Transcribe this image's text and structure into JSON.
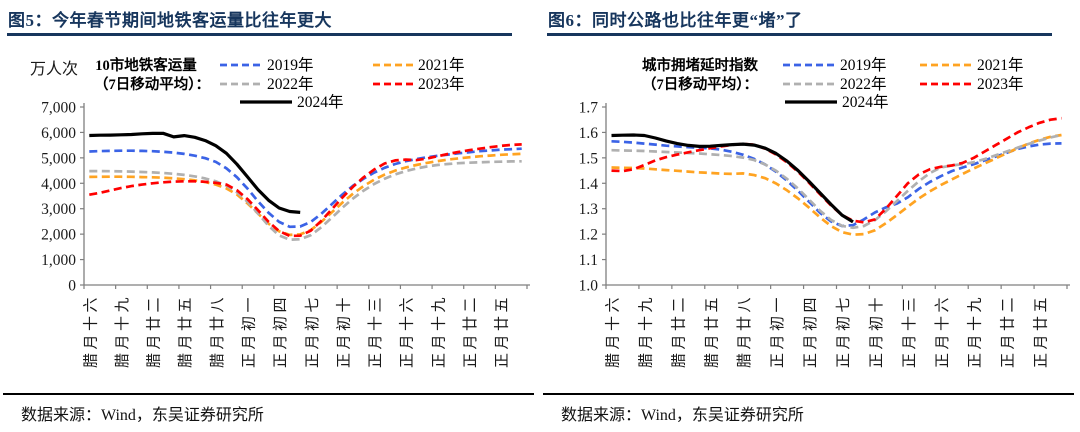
{
  "panels": [
    {
      "id": "subway",
      "title": "图5：今年春节期间地铁客运量比往年更大",
      "unit_label": "万人次",
      "legend_title": [
        "10市地铁客运量",
        "（7日移动平均）："
      ],
      "source": "数据来源：Wind，东吴证券研究所"
    },
    {
      "id": "congestion",
      "title": "图6：同时公路也比往年更“堵”了",
      "unit_label": "",
      "legend_title": [
        "城市拥堵延时指数",
        "（7日移动平均）："
      ],
      "source": "数据来源：Wind，东吴证券研究所"
    }
  ],
  "colors": {
    "title_navy": "#17365D",
    "blue_2019": "#3B63E6",
    "orange_2021": "#FFA321",
    "gray_2022": "#B0B0B0",
    "red_2023": "#FF0000",
    "black_2024": "#000000",
    "axis_gray": "#7F7F7F"
  },
  "chart_data": [
    {
      "type": "line",
      "title": "图5：今年春节期间地铁客运量比往年更大",
      "ylabel": "万人次",
      "ylim": [
        0,
        7000
      ],
      "n_points": 42,
      "grid": false,
      "legend_position": "top",
      "y_tick_labels": [
        "0",
        "1,000",
        "2,000",
        "3,000",
        "4,000",
        "5,000",
        "6,000",
        "7,000"
      ],
      "x_tick_labels": [
        "腊月十六",
        "腊月十九",
        "腊月廿二",
        "腊月廿五",
        "腊月廿八",
        "正月初一",
        "正月初四",
        "正月初七",
        "正月初十",
        "正月十三",
        "正月十六",
        "正月十九",
        "正月廿二",
        "正月廿五"
      ],
      "x_tick_interval": 3,
      "series": [
        {
          "name": "2019年",
          "color": "#3B63E6",
          "dash": "dashed",
          "values": [
            5250,
            5265,
            5275,
            5280,
            5280,
            5275,
            5260,
            5240,
            5205,
            5155,
            5085,
            4985,
            4840,
            4590,
            4240,
            3790,
            3290,
            2840,
            2480,
            2290,
            2300,
            2480,
            2800,
            3180,
            3560,
            3900,
            4180,
            4420,
            4610,
            4760,
            4870,
            4950,
            5020,
            5080,
            5130,
            5180,
            5220,
            5260,
            5290,
            5320,
            5340,
            5360
          ]
        },
        {
          "name": "2021年",
          "color": "#FFA321",
          "dash": "dashed",
          "values": [
            4250,
            4255,
            4260,
            4260,
            4255,
            4245,
            4235,
            4220,
            4195,
            4160,
            4115,
            4050,
            3950,
            3800,
            3560,
            3210,
            2810,
            2410,
            2110,
            1970,
            1990,
            2160,
            2480,
            2860,
            3240,
            3590,
            3890,
            4140,
            4340,
            4500,
            4620,
            4720,
            4800,
            4870,
            4930,
            4980,
            5020,
            5060,
            5090,
            5120,
            5140,
            5160
          ]
        },
        {
          "name": "2022年",
          "color": "#B0B0B0",
          "dash": "dashed",
          "values": [
            4480,
            4480,
            4475,
            4468,
            4458,
            4445,
            4428,
            4405,
            4372,
            4328,
            4270,
            4190,
            4080,
            3910,
            3650,
            3270,
            2810,
            2330,
            1950,
            1780,
            1800,
            1960,
            2270,
            2650,
            3040,
            3400,
            3710,
            3970,
            4180,
            4350,
            4480,
            4580,
            4660,
            4720,
            4760,
            4790,
            4810,
            4825,
            4840,
            4850,
            4860,
            4865
          ]
        },
        {
          "name": "2023年",
          "color": "#FF0000",
          "dash": "dashed",
          "values": [
            3550,
            3620,
            3720,
            3810,
            3890,
            3950,
            4000,
            4040,
            4065,
            4080,
            4080,
            4060,
            4020,
            3950,
            3730,
            3380,
            2940,
            2480,
            2120,
            1930,
            1940,
            2140,
            2520,
            2980,
            3440,
            3860,
            4230,
            4540,
            4780,
            4900,
            4930,
            4910,
            4970,
            5060,
            5150,
            5230,
            5300,
            5360,
            5420,
            5470,
            5510,
            5530
          ]
        },
        {
          "name": "2024年",
          "color": "#000000",
          "dash": "solid",
          "values": [
            5880,
            5890,
            5895,
            5905,
            5920,
            5945,
            5960,
            5965,
            5825,
            5875,
            5810,
            5680,
            5480,
            5180,
            4750,
            4250,
            3750,
            3330,
            3030,
            2890,
            2855
          ]
        }
      ]
    },
    {
      "type": "line",
      "title": "图6：同时公路也比往年更“堵”了",
      "ylabel": "",
      "ylim": [
        1.0,
        1.7
      ],
      "n_points": 42,
      "grid": false,
      "legend_position": "top",
      "y_tick_labels": [
        "1.0",
        "1.1",
        "1.2",
        "1.3",
        "1.4",
        "1.5",
        "1.6",
        "1.7"
      ],
      "x_tick_labels": [
        "腊月十六",
        "腊月十九",
        "腊月廿二",
        "腊月廿五",
        "腊月廿八",
        "正月初一",
        "正月初四",
        "正月初七",
        "正月初十",
        "正月十三",
        "正月十六",
        "正月十九",
        "正月廿二",
        "正月廿五"
      ],
      "x_tick_interval": 3,
      "series": [
        {
          "name": "2019年",
          "color": "#3B63E6",
          "dash": "dashed",
          "values": [
            1.565,
            1.563,
            1.56,
            1.556,
            1.552,
            1.548,
            1.545,
            1.542,
            1.54,
            1.537,
            1.532,
            1.524,
            1.512,
            1.496,
            1.474,
            1.445,
            1.41,
            1.37,
            1.327,
            1.284,
            1.25,
            1.232,
            1.235,
            1.258,
            1.285,
            1.305,
            1.32,
            1.345,
            1.378,
            1.405,
            1.428,
            1.448,
            1.462,
            1.475,
            1.49,
            1.505,
            1.52,
            1.535,
            1.545,
            1.552,
            1.556,
            1.557
          ]
        },
        {
          "name": "2021年",
          "color": "#FFA321",
          "dash": "dashed",
          "values": [
            1.462,
            1.461,
            1.46,
            1.458,
            1.455,
            1.452,
            1.449,
            1.446,
            1.443,
            1.441,
            1.438,
            1.437,
            1.439,
            1.432,
            1.42,
            1.399,
            1.372,
            1.34,
            1.304,
            1.266,
            1.232,
            1.208,
            1.198,
            1.2,
            1.215,
            1.243,
            1.275,
            1.308,
            1.34,
            1.368,
            1.393,
            1.415,
            1.437,
            1.458,
            1.478,
            1.498,
            1.518,
            1.538,
            1.556,
            1.571,
            1.583,
            1.59
          ]
        },
        {
          "name": "2022年",
          "color": "#B0B0B0",
          "dash": "dashed",
          "values": [
            1.53,
            1.529,
            1.528,
            1.527,
            1.525,
            1.523,
            1.521,
            1.519,
            1.517,
            1.514,
            1.511,
            1.507,
            1.501,
            1.491,
            1.474,
            1.449,
            1.417,
            1.379,
            1.336,
            1.292,
            1.256,
            1.233,
            1.225,
            1.232,
            1.255,
            1.29,
            1.33,
            1.37,
            1.408,
            1.44,
            1.462,
            1.47,
            1.475,
            1.483,
            1.495,
            1.51,
            1.525,
            1.54,
            1.555,
            1.568,
            1.58,
            1.59
          ]
        },
        {
          "name": "2023年",
          "color": "#FF0000",
          "dash": "dashed",
          "values": [
            1.45,
            1.448,
            1.455,
            1.472,
            1.49,
            1.503,
            1.513,
            1.522,
            1.53,
            1.538,
            1.545,
            1.551,
            1.555,
            1.552,
            1.536,
            1.513,
            1.482,
            1.445,
            1.402,
            1.357,
            1.313,
            1.275,
            1.253,
            1.246,
            1.258,
            1.3,
            1.35,
            1.4,
            1.435,
            1.455,
            1.465,
            1.47,
            1.48,
            1.5,
            1.525,
            1.55,
            1.575,
            1.6,
            1.62,
            1.638,
            1.65,
            1.656
          ]
        },
        {
          "name": "2024年",
          "color": "#000000",
          "dash": "solid",
          "values": [
            1.588,
            1.589,
            1.59,
            1.588,
            1.578,
            1.566,
            1.556,
            1.549,
            1.545,
            1.546,
            1.549,
            1.552,
            1.554,
            1.55,
            1.538,
            1.517,
            1.487,
            1.45,
            1.407,
            1.362,
            1.317,
            1.275,
            1.248
          ]
        }
      ]
    }
  ]
}
